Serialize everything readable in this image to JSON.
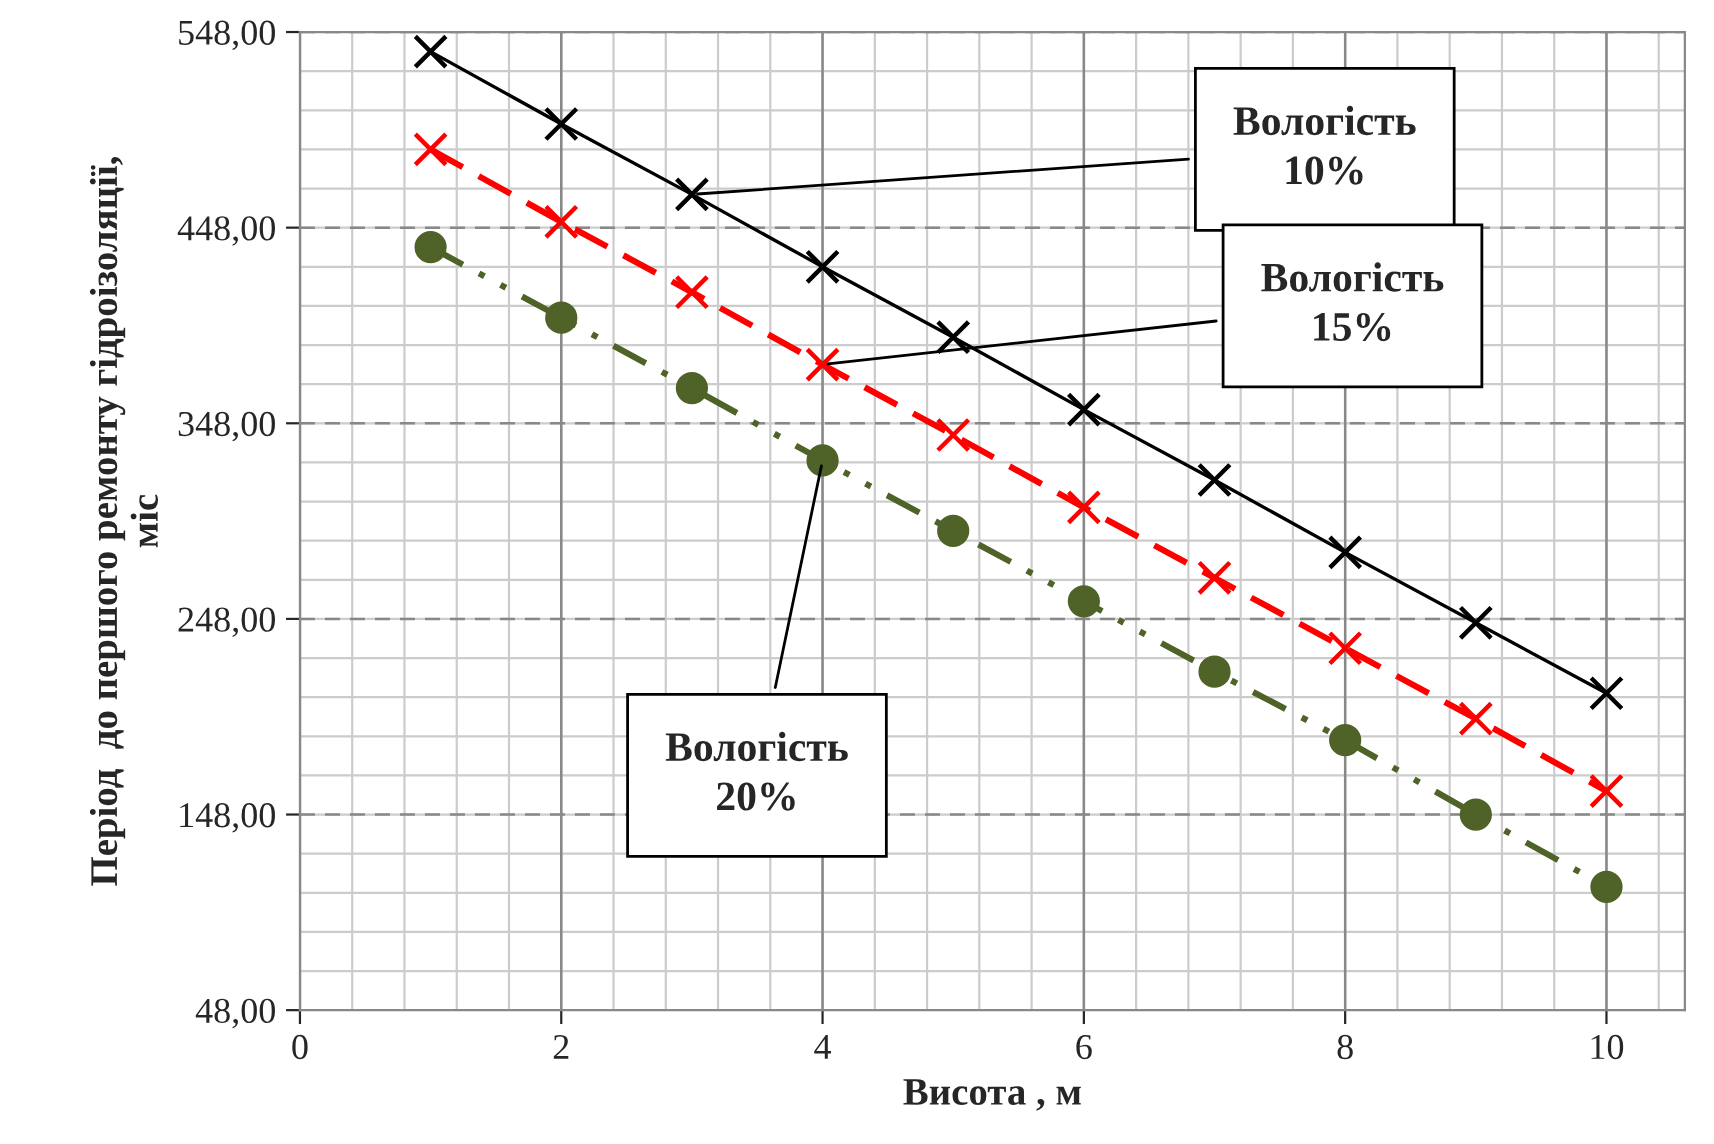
{
  "chart_data": {
    "type": "line",
    "xlabel": "Висота , м",
    "ylabel": "Період  до першого ремонту гідроізоляції,\nміс",
    "x": [
      1,
      2,
      3,
      4,
      5,
      6,
      7,
      8,
      9,
      10
    ],
    "series": [
      {
        "name": "Вологість\n10%",
        "color": "#000000",
        "marker": "cross",
        "line_style": "solid",
        "values": [
          538,
          501,
          465,
          428,
          392,
          355,
          319,
          282,
          246,
          210
        ]
      },
      {
        "name": "Вологість\n15%",
        "color": "#ff0000",
        "marker": "cross",
        "line_style": "dashed",
        "values": [
          488,
          451,
          415,
          378,
          342,
          305,
          269,
          233,
          197,
          160
        ]
      },
      {
        "name": "Вологість\n20%",
        "color": "#4f6228",
        "marker": "circle",
        "line_style": "dotted",
        "values": [
          438,
          402,
          366,
          329,
          293,
          257,
          221,
          186,
          148,
          111
        ]
      }
    ],
    "xlim": [
      0,
      10.6
    ],
    "xticks": [
      0,
      2,
      4,
      6,
      8,
      10
    ],
    "ylim": [
      48,
      548
    ],
    "yticks": [
      {
        "value": 48,
        "label": "48,00"
      },
      {
        "value": 148,
        "label": "148,00"
      },
      {
        "value": 248,
        "label": "248,00"
      },
      {
        "value": 348,
        "label": "348,00"
      },
      {
        "value": 448,
        "label": "448,00"
      },
      {
        "value": 548,
        "label": "548,00"
      }
    ],
    "grid": true,
    "legend": false
  }
}
